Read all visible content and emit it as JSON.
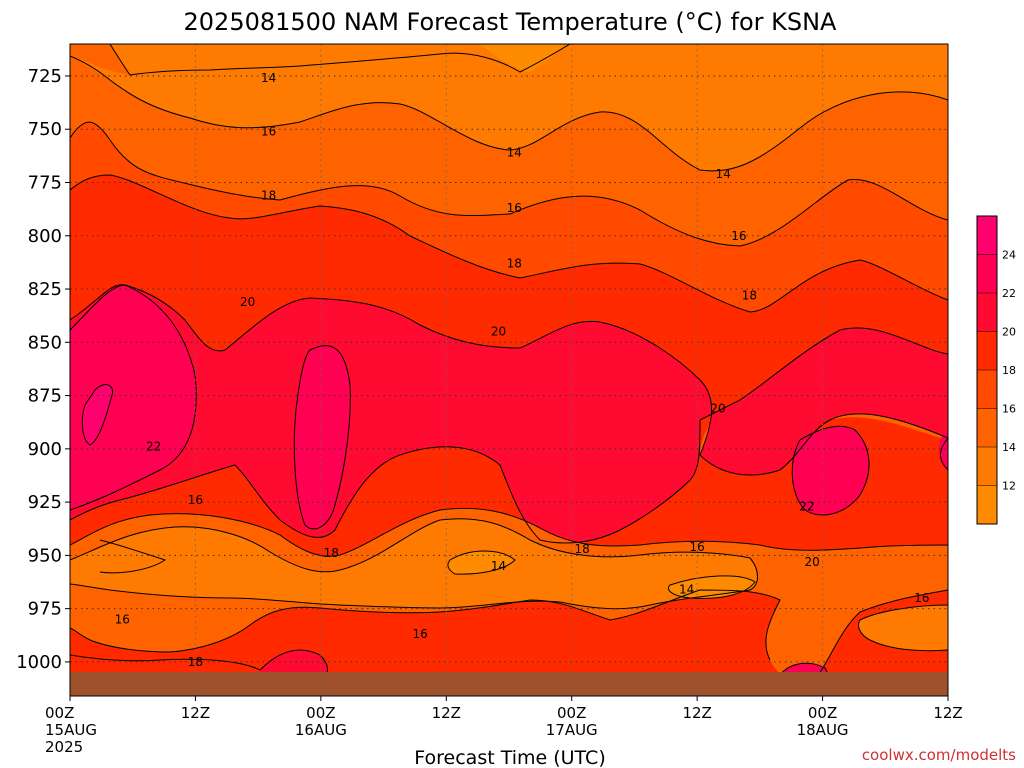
{
  "chart_data": {
    "type": "contour",
    "title": "2025081500 NAM Forecast Temperature (°C) for KSNA",
    "xlabel": "Forecast Time (UTC)",
    "ylabel": "",
    "x_ticks": [
      {
        "hour": 0,
        "lines": [
          "00Z",
          "15AUG",
          "2025"
        ]
      },
      {
        "hour": 12,
        "lines": [
          "12Z"
        ]
      },
      {
        "hour": 24,
        "lines": [
          "00Z",
          "16AUG"
        ]
      },
      {
        "hour": 36,
        "lines": [
          "12Z"
        ]
      },
      {
        "hour": 48,
        "lines": [
          "00Z",
          "17AUG"
        ]
      },
      {
        "hour": 60,
        "lines": [
          "12Z"
        ]
      },
      {
        "hour": 72,
        "lines": [
          "00Z",
          "18AUG"
        ]
      },
      {
        "hour": 84,
        "lines": [
          "12Z"
        ]
      }
    ],
    "xlim": [
      0,
      84
    ],
    "y_ticks": [
      "725",
      "750",
      "775",
      "800",
      "825",
      "850",
      "875",
      "900",
      "925",
      "950",
      "975",
      "1000"
    ],
    "ylim": [
      1016,
      710
    ],
    "contour_levels": [
      10,
      12,
      14,
      16,
      18,
      20,
      22,
      24
    ],
    "contour_labels": [
      {
        "text": "14",
        "hour": 19,
        "p": 726
      },
      {
        "text": "14",
        "hour": 42.5,
        "p": 761
      },
      {
        "text": "14",
        "hour": 62.5,
        "p": 771
      },
      {
        "text": "16",
        "hour": 19,
        "p": 751
      },
      {
        "text": "16",
        "hour": 42.5,
        "p": 787
      },
      {
        "text": "16",
        "hour": 64,
        "p": 800
      },
      {
        "text": "18",
        "hour": 19,
        "p": 781
      },
      {
        "text": "18",
        "hour": 42.5,
        "p": 813
      },
      {
        "text": "18",
        "hour": 65,
        "p": 828
      },
      {
        "text": "20",
        "hour": 17,
        "p": 831
      },
      {
        "text": "20",
        "hour": 41,
        "p": 845
      },
      {
        "text": "20",
        "hour": 62,
        "p": 881
      },
      {
        "text": "20",
        "hour": 71,
        "p": 953
      },
      {
        "text": "22",
        "hour": 8,
        "p": 899
      },
      {
        "text": "22",
        "hour": 70.5,
        "p": 927
      },
      {
        "text": "16",
        "hour": 12,
        "p": 924
      },
      {
        "text": "16",
        "hour": 60,
        "p": 946
      },
      {
        "text": "16",
        "hour": 5,
        "p": 980
      },
      {
        "text": "16",
        "hour": 33.5,
        "p": 987
      },
      {
        "text": "16",
        "hour": 81.5,
        "p": 970
      },
      {
        "text": "18",
        "hour": 25,
        "p": 949
      },
      {
        "text": "18",
        "hour": 49,
        "p": 947
      },
      {
        "text": "18",
        "hour": 12,
        "p": 1000
      },
      {
        "text": "14",
        "hour": 41,
        "p": 955
      },
      {
        "text": "14",
        "hour": 59,
        "p": 966
      }
    ],
    "colorbar": {
      "ticks": [
        "12",
        "14",
        "16",
        "18",
        "20",
        "22",
        "24"
      ],
      "colors": [
        "#ff8c00",
        "#ff7a00",
        "#ff6300",
        "#ff4a00",
        "#ff2a00",
        "#ff0a30",
        "#ff0052",
        "#ff006e"
      ]
    },
    "terrain_color": "#a0522d",
    "grid": true,
    "legend": "colorbar right"
  },
  "credit": "coolwx.com/modelts"
}
